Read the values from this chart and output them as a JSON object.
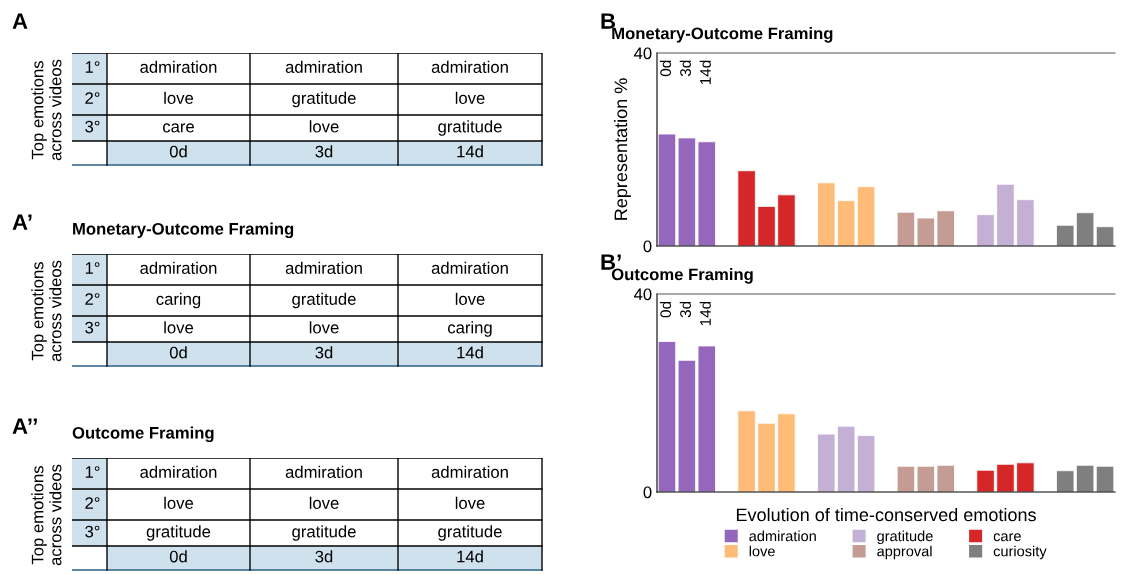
{
  "chart_data": [
    {
      "type": "bar",
      "annotations": [
        "B",
        "0d",
        "3d",
        "14d"
      ],
      "title": "Monetary-Outcome Framing",
      "ylabel": "Representation %",
      "ylim": [
        0,
        40
      ],
      "yticks": [
        0,
        40
      ],
      "grid": false,
      "categories": [
        null,
        null,
        null,
        null,
        null,
        null,
        null,
        null,
        null,
        null,
        null,
        null,
        null,
        null,
        null,
        null,
        null,
        null,
        null,
        null,
        null,
        null,
        null
      ],
      "series": [
        {
          "color": "#9467bd",
          "values": [
            23.2,
            22.4,
            21.6,
            null,
            null,
            null,
            null,
            null,
            null,
            null,
            null,
            null,
            null,
            null,
            null,
            null,
            null,
            null,
            null,
            null,
            null,
            null,
            null
          ]
        },
        {
          "color": "#d62728",
          "values": [
            null,
            null,
            null,
            null,
            15.6,
            8.2,
            10.6,
            null,
            null,
            null,
            null,
            null,
            null,
            null,
            null,
            null,
            null,
            null,
            null,
            null,
            null,
            null,
            null
          ]
        },
        {
          "color": "#ffbb78",
          "values": [
            null,
            null,
            null,
            null,
            null,
            null,
            null,
            null,
            13.1,
            9.4,
            12.3,
            null,
            null,
            null,
            null,
            null,
            null,
            null,
            null,
            null,
            null,
            null,
            null
          ]
        },
        {
          "color": "#c49c94",
          "values": [
            null,
            null,
            null,
            null,
            null,
            null,
            null,
            null,
            null,
            null,
            null,
            null,
            7.0,
            5.8,
            7.3,
            null,
            null,
            null,
            null,
            null,
            null,
            null,
            null
          ]
        },
        {
          "color": "#c5b0d5",
          "values": [
            null,
            null,
            null,
            null,
            null,
            null,
            null,
            null,
            null,
            null,
            null,
            null,
            null,
            null,
            null,
            null,
            6.5,
            12.8,
            9.6,
            null,
            null,
            null,
            null
          ]
        },
        {
          "color": "#7f7f7f",
          "values": [
            null,
            null,
            null,
            null,
            null,
            null,
            null,
            null,
            null,
            null,
            null,
            null,
            null,
            null,
            null,
            null,
            null,
            null,
            null,
            null,
            4.3,
            6.9,
            4.0
          ]
        }
      ]
    },
    {
      "type": "bar",
      "annotations": [
        "B’",
        "0d",
        "3d",
        "14d"
      ],
      "title": "Outcome Framing",
      "xlabel": "Evolution of time-conserved emotions",
      "ylim": [
        0,
        40
      ],
      "yticks": [
        0,
        40
      ],
      "grid": false,
      "legend": "bottom",
      "categories": [
        null,
        null,
        null,
        null,
        null,
        null,
        null,
        null,
        null,
        null,
        null,
        null,
        null,
        null,
        null,
        null,
        null,
        null,
        null,
        null,
        null,
        null,
        null
      ],
      "series": [
        {
          "name": "admiration",
          "color": "#9467bd",
          "values": [
            30.4,
            26.6,
            29.5,
            null,
            null,
            null,
            null,
            null,
            null,
            null,
            null,
            null,
            null,
            null,
            null,
            null,
            null,
            null,
            null,
            null,
            null,
            null,
            null
          ]
        },
        {
          "name": "love",
          "color": "#ffbb78",
          "values": [
            null,
            null,
            null,
            null,
            16.4,
            13.9,
            15.8,
            null,
            null,
            null,
            null,
            null,
            null,
            null,
            null,
            null,
            null,
            null,
            null,
            null,
            null,
            null,
            null
          ]
        },
        {
          "name": "gratitude",
          "color": "#c5b0d5",
          "values": [
            null,
            null,
            null,
            null,
            null,
            null,
            null,
            null,
            11.7,
            13.3,
            11.4,
            null,
            null,
            null,
            null,
            null,
            null,
            null,
            null,
            null,
            null,
            null,
            null
          ]
        },
        {
          "name": "approval",
          "color": "#c49c94",
          "values": [
            null,
            null,
            null,
            null,
            null,
            null,
            null,
            null,
            null,
            null,
            null,
            null,
            5.2,
            5.2,
            5.4,
            null,
            null,
            null,
            null,
            null,
            null,
            null,
            null
          ]
        },
        {
          "name": "care",
          "color": "#d62728",
          "values": [
            null,
            null,
            null,
            null,
            null,
            null,
            null,
            null,
            null,
            null,
            null,
            null,
            null,
            null,
            null,
            null,
            4.4,
            5.6,
            5.9,
            null,
            null,
            null,
            null
          ]
        },
        {
          "name": "curiosity",
          "color": "#7f7f7f",
          "values": [
            null,
            null,
            null,
            null,
            null,
            null,
            null,
            null,
            null,
            null,
            null,
            null,
            null,
            null,
            null,
            null,
            null,
            null,
            null,
            null,
            4.3,
            5.4,
            5.2
          ]
        }
      ]
    },
    {
      "type": "other",
      "annotations": [
        "A"
      ],
      "ylabel": "Top emotions across videos",
      "categories": [
        "0d",
        "3d",
        "14d"
      ],
      "y_categories": [
        "1°",
        "2°",
        "3°"
      ],
      "cell_labels": [
        [
          "admiration",
          "admiration",
          "admiration"
        ],
        [
          "love",
          "gratitude",
          "love"
        ],
        [
          "care",
          "love",
          "gratitude"
        ]
      ]
    },
    {
      "type": "other",
      "annotations": [
        "A’"
      ],
      "title": "Monetary-Outcome Framing",
      "ylabel": "Top emotions across videos",
      "categories": [
        "0d",
        "3d",
        "14d"
      ],
      "y_categories": [
        "1°",
        "2°",
        "3°"
      ],
      "cell_labels": [
        [
          "admiration",
          "admiration",
          "admiration"
        ],
        [
          "caring",
          "gratitude",
          "love"
        ],
        [
          "love",
          "love",
          "caring"
        ]
      ]
    },
    {
      "type": "other",
      "annotations": [
        "A’’"
      ],
      "title": "Outcome Framing",
      "ylabel": "Top emotions across videos",
      "categories": [
        "0d",
        "3d",
        "14d"
      ],
      "y_categories": [
        "1°",
        "2°",
        "3°"
      ],
      "cell_labels": [
        [
          "admiration",
          "admiration",
          "admiration"
        ],
        [
          "love",
          "love",
          "love"
        ],
        [
          "gratitude",
          "gratitude",
          "gratitude"
        ]
      ]
    }
  ]
}
